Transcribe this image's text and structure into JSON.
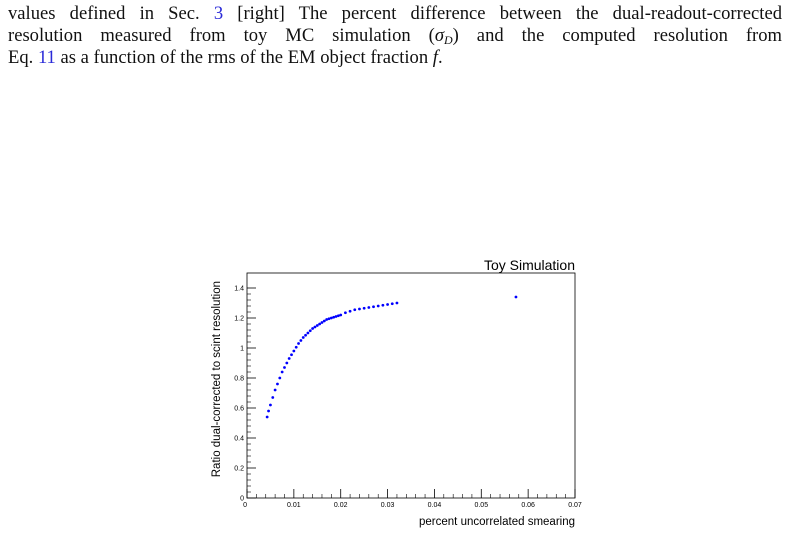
{
  "text": {
    "line1": [
      "values defined in Sec. ",
      "3",
      " [right] The percent difference between the dual-readout-corrected"
    ],
    "line2": [
      "resolution measured from toy MC simulation (",
      "σ",
      "D",
      ") and the computed resolution from"
    ],
    "line3": [
      "Eq. ",
      "11",
      " as a function of the rms of the EM object fraction ",
      "f",
      "."
    ]
  },
  "chart_data": {
    "type": "scatter",
    "title": "Toy Simulation",
    "x_label": "percent uncorrelated smearing",
    "y_label": "Ratio dual-corrected to scint resolution",
    "color": "#0000ff",
    "x": [
      0.0043,
      0.0046,
      0.005,
      0.0055,
      0.006,
      0.0065,
      0.007,
      0.0075,
      0.008,
      0.0085,
      0.009,
      0.0095,
      0.01,
      0.0105,
      0.011,
      0.0115,
      0.012,
      0.0125,
      0.013,
      0.0135,
      0.014,
      0.0145,
      0.015,
      0.0155,
      0.016,
      0.0165,
      0.017,
      0.0175,
      0.018,
      0.0185,
      0.019,
      0.0195,
      0.02,
      0.021,
      0.022,
      0.023,
      0.024,
      0.025,
      0.026,
      0.027,
      0.028,
      0.029,
      0.03,
      0.031,
      0.032,
      0.0574
    ],
    "values": [
      0.54,
      0.58,
      0.62,
      0.67,
      0.72,
      0.76,
      0.8,
      0.84,
      0.87,
      0.9,
      0.93,
      0.955,
      0.98,
      1.005,
      1.03,
      1.05,
      1.07,
      1.085,
      1.1,
      1.115,
      1.13,
      1.14,
      1.15,
      1.16,
      1.17,
      1.18,
      1.19,
      1.195,
      1.2,
      1.205,
      1.21,
      1.215,
      1.22,
      1.235,
      1.245,
      1.255,
      1.26,
      1.265,
      1.27,
      1.275,
      1.28,
      1.285,
      1.29,
      1.295,
      1.3,
      1.34
    ],
    "xlim": [
      0,
      0.07
    ],
    "ylim": [
      0,
      1.5
    ],
    "xticks": [
      0,
      0.01,
      0.02,
      0.03,
      0.04,
      0.05,
      0.06,
      0.07
    ],
    "yticks": [
      0,
      0.2,
      0.4,
      0.6,
      0.8,
      1,
      1.2,
      1.4
    ]
  }
}
